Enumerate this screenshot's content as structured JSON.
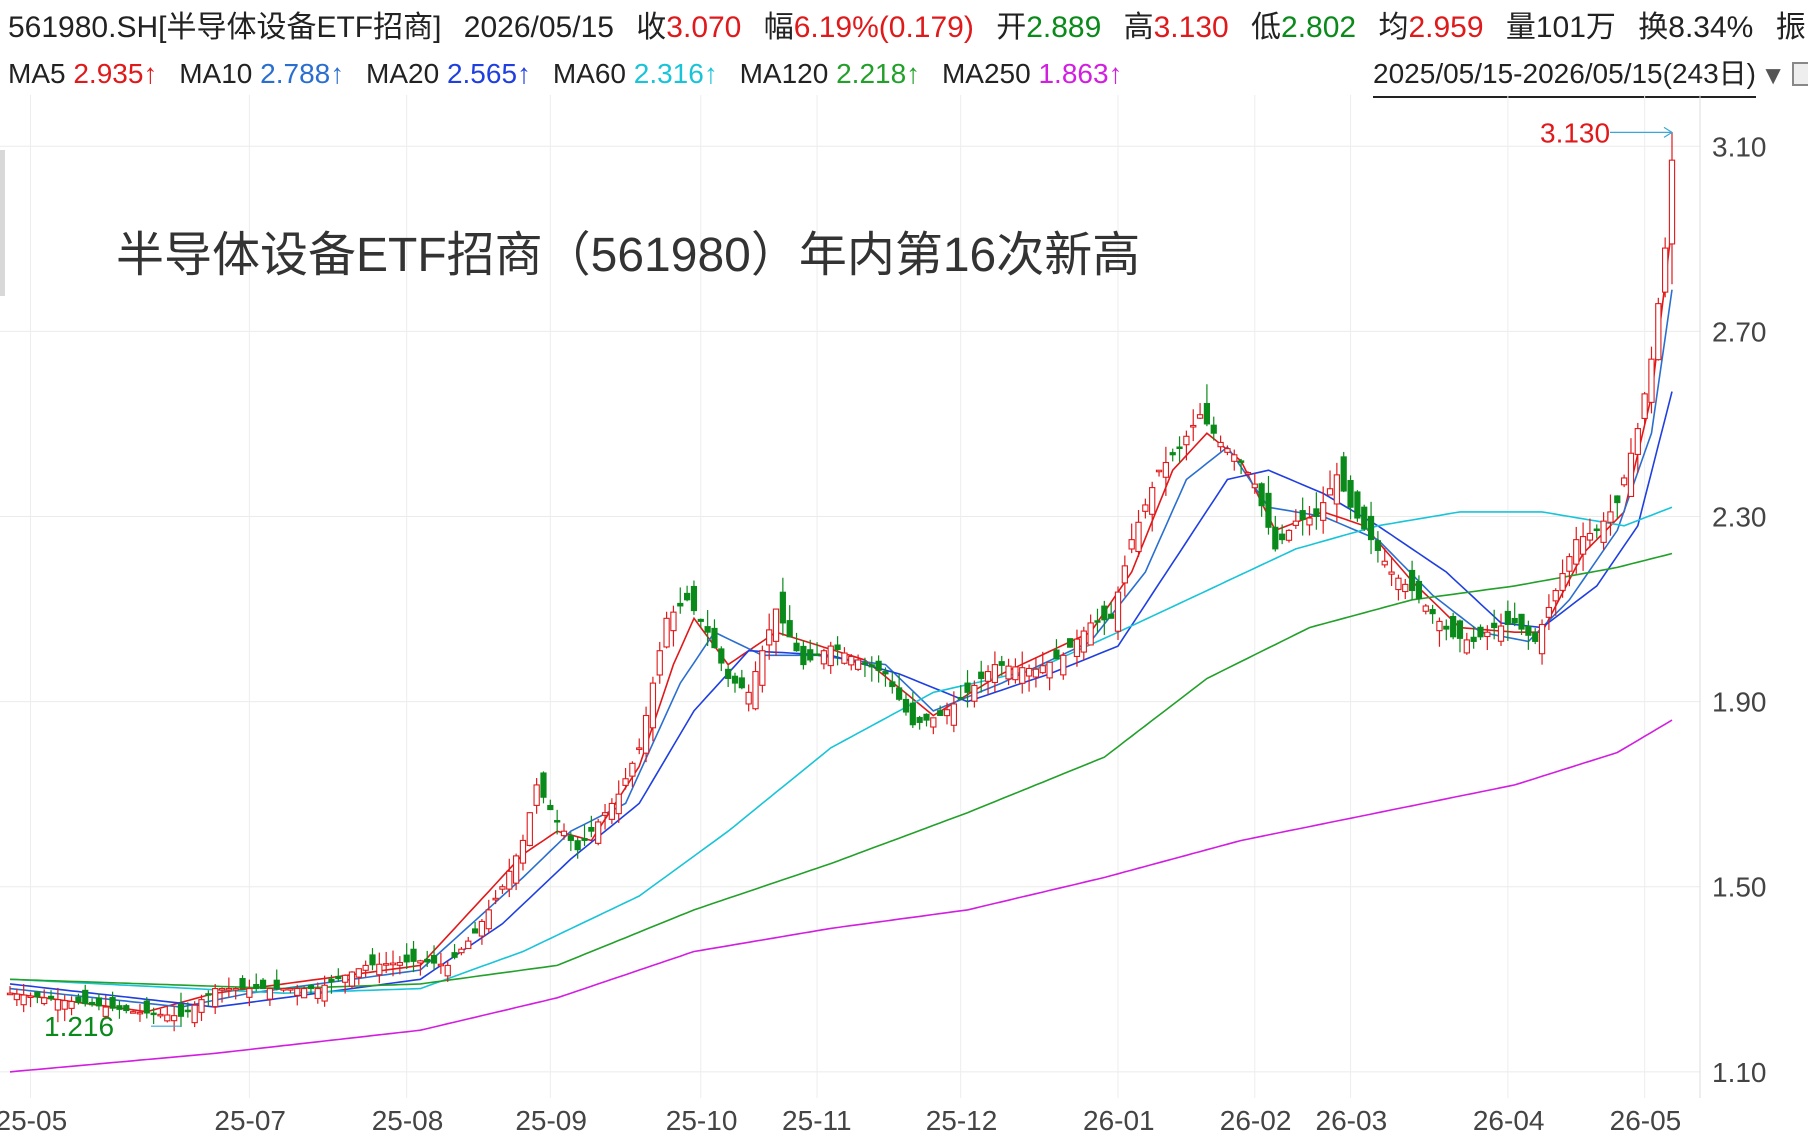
{
  "header": {
    "code_name": "561980.SH[半导体设备ETF招商]",
    "date": "2026/05/15",
    "close_label": "收",
    "close_value": "3.070",
    "change_label": "幅",
    "change_value": "6.19%(0.179)",
    "open_label": "开",
    "open_value": "2.889",
    "high_label": "高",
    "high_value": "3.130",
    "low_label": "低",
    "low_value": "2.802",
    "avg_label": "均",
    "avg_value": "2.959",
    "vol_label": "量",
    "vol_value": "101万",
    "turnover_label": "换",
    "turnover_value": "8.34%",
    "amp_label": "振"
  },
  "ma_line": [
    {
      "label": "MA5",
      "value": "2.935↑",
      "color": "#e0191b"
    },
    {
      "label": "MA10",
      "value": "2.788↑",
      "color": "#2a6fcf"
    },
    {
      "label": "MA20",
      "value": "2.565↑",
      "color": "#1f3fe0"
    },
    {
      "label": "MA60",
      "value": "2.316↑",
      "color": "#19c4d8"
    },
    {
      "label": "MA120",
      "value": "2.218↑",
      "color": "#22a02a"
    },
    {
      "label": "MA250",
      "value": "1.863↑",
      "color": "#d21ee0"
    }
  ],
  "range_label": "2025/05/15-2026/05/15(243日)",
  "annotation": "半导体设备ETF招商（561980）年内第16次新高",
  "colors": {
    "up": "#e0191b",
    "down": "#0a8a1a",
    "grid": "#e8e8e8"
  },
  "chart_data": {
    "type": "candlestick",
    "ylim": [
      1.05,
      3.2
    ],
    "y_ticks": [
      {
        "v": 3.1,
        "label": "3.10"
      },
      {
        "v": 2.7,
        "label": "2.70"
      },
      {
        "v": 2.3,
        "label": "2.30"
      },
      {
        "v": 1.9,
        "label": "1.90"
      },
      {
        "v": 1.5,
        "label": "1.50"
      },
      {
        "v": 1.1,
        "label": "1.10"
      }
    ],
    "x_labels": [
      {
        "i": 3,
        "label": "25-05"
      },
      {
        "i": 35,
        "label": "25-07"
      },
      {
        "i": 58,
        "label": "25-08"
      },
      {
        "i": 79,
        "label": "25-09"
      },
      {
        "i": 101,
        "label": "25-10"
      },
      {
        "i": 118,
        "label": "25-11"
      },
      {
        "i": 139,
        "label": "25-12"
      },
      {
        "i": 162,
        "label": "26-01"
      },
      {
        "i": 182,
        "label": "26-02"
      },
      {
        "i": 196,
        "label": "26-03"
      },
      {
        "i": 219,
        "label": "26-04"
      },
      {
        "i": 239,
        "label": "26-05"
      }
    ],
    "high_marker": {
      "value": "3.130"
    },
    "low_marker": {
      "value": "1.216"
    },
    "close_anchors": [
      [
        0,
        1.27
      ],
      [
        10,
        1.25
      ],
      [
        18,
        1.23
      ],
      [
        25,
        1.22
      ],
      [
        30,
        1.28
      ],
      [
        45,
        1.28
      ],
      [
        52,
        1.33
      ],
      [
        60,
        1.34
      ],
      [
        64,
        1.33
      ],
      [
        68,
        1.4
      ],
      [
        72,
        1.5
      ],
      [
        75,
        1.6
      ],
      [
        77,
        1.72
      ],
      [
        80,
        1.64
      ],
      [
        83,
        1.58
      ],
      [
        86,
        1.64
      ],
      [
        89,
        1.7
      ],
      [
        92,
        1.8
      ],
      [
        96,
        2.08
      ],
      [
        99,
        2.12
      ],
      [
        102,
        2.05
      ],
      [
        105,
        1.95
      ],
      [
        108,
        1.92
      ],
      [
        112,
        2.1
      ],
      [
        116,
        1.98
      ],
      [
        120,
        2.02
      ],
      [
        124,
        1.99
      ],
      [
        128,
        1.96
      ],
      [
        132,
        1.85
      ],
      [
        136,
        1.87
      ],
      [
        140,
        1.92
      ],
      [
        144,
        1.98
      ],
      [
        150,
        1.97
      ],
      [
        154,
        2.0
      ],
      [
        158,
        2.07
      ],
      [
        161,
        2.08
      ],
      [
        164,
        2.25
      ],
      [
        168,
        2.4
      ],
      [
        171,
        2.45
      ],
      [
        174,
        2.52
      ],
      [
        177,
        2.46
      ],
      [
        180,
        2.42
      ],
      [
        182,
        2.37
      ],
      [
        185,
        2.23
      ],
      [
        188,
        2.29
      ],
      [
        191,
        2.3
      ],
      [
        194,
        2.39
      ],
      [
        196,
        2.32
      ],
      [
        199,
        2.25
      ],
      [
        202,
        2.18
      ],
      [
        205,
        2.14
      ],
      [
        208,
        2.09
      ],
      [
        211,
        2.04
      ],
      [
        214,
        2.03
      ],
      [
        217,
        2.06
      ],
      [
        220,
        2.07
      ],
      [
        223,
        2.03
      ],
      [
        226,
        2.14
      ],
      [
        229,
        2.25
      ],
      [
        232,
        2.27
      ],
      [
        235,
        2.33
      ],
      [
        238,
        2.49
      ],
      [
        240,
        2.64
      ],
      [
        242,
        2.88
      ],
      [
        243,
        3.07
      ]
    ],
    "ma_series": [
      {
        "name": "MA5",
        "color": "#e0191b",
        "anchors": [
          [
            0,
            1.27
          ],
          [
            20,
            1.23
          ],
          [
            30,
            1.27
          ],
          [
            60,
            1.33
          ],
          [
            75,
            1.57
          ],
          [
            80,
            1.62
          ],
          [
            85,
            1.6
          ],
          [
            92,
            1.76
          ],
          [
            97,
            1.98
          ],
          [
            100,
            2.08
          ],
          [
            105,
            1.98
          ],
          [
            112,
            2.05
          ],
          [
            125,
            1.99
          ],
          [
            135,
            1.87
          ],
          [
            145,
            1.96
          ],
          [
            158,
            2.05
          ],
          [
            164,
            2.18
          ],
          [
            170,
            2.4
          ],
          [
            175,
            2.48
          ],
          [
            180,
            2.42
          ],
          [
            185,
            2.27
          ],
          [
            192,
            2.31
          ],
          [
            198,
            2.28
          ],
          [
            205,
            2.16
          ],
          [
            212,
            2.06
          ],
          [
            220,
            2.05
          ],
          [
            224,
            2.05
          ],
          [
            230,
            2.22
          ],
          [
            236,
            2.31
          ],
          [
            240,
            2.56
          ],
          [
            243,
            2.93
          ]
        ]
      },
      {
        "name": "MA10",
        "color": "#2a6fcf",
        "anchors": [
          [
            0,
            1.28
          ],
          [
            25,
            1.24
          ],
          [
            35,
            1.27
          ],
          [
            60,
            1.32
          ],
          [
            75,
            1.52
          ],
          [
            82,
            1.62
          ],
          [
            90,
            1.68
          ],
          [
            98,
            1.94
          ],
          [
            103,
            2.05
          ],
          [
            110,
            2.0
          ],
          [
            118,
            2.0
          ],
          [
            128,
            1.98
          ],
          [
            135,
            1.88
          ],
          [
            145,
            1.94
          ],
          [
            158,
            2.03
          ],
          [
            166,
            2.18
          ],
          [
            172,
            2.38
          ],
          [
            178,
            2.45
          ],
          [
            184,
            2.32
          ],
          [
            192,
            2.3
          ],
          [
            200,
            2.25
          ],
          [
            208,
            2.13
          ],
          [
            215,
            2.05
          ],
          [
            222,
            2.03
          ],
          [
            228,
            2.12
          ],
          [
            235,
            2.27
          ],
          [
            240,
            2.48
          ],
          [
            243,
            2.79
          ]
        ]
      },
      {
        "name": "MA20",
        "color": "#1f3fe0",
        "anchors": [
          [
            0,
            1.29
          ],
          [
            30,
            1.24
          ],
          [
            45,
            1.27
          ],
          [
            60,
            1.3
          ],
          [
            72,
            1.42
          ],
          [
            82,
            1.56
          ],
          [
            92,
            1.68
          ],
          [
            100,
            1.88
          ],
          [
            108,
            2.01
          ],
          [
            120,
            2.0
          ],
          [
            130,
            1.96
          ],
          [
            140,
            1.9
          ],
          [
            152,
            1.96
          ],
          [
            162,
            2.02
          ],
          [
            170,
            2.2
          ],
          [
            178,
            2.38
          ],
          [
            184,
            2.4
          ],
          [
            192,
            2.35
          ],
          [
            200,
            2.28
          ],
          [
            210,
            2.18
          ],
          [
            218,
            2.07
          ],
          [
            224,
            2.06
          ],
          [
            232,
            2.15
          ],
          [
            238,
            2.28
          ],
          [
            243,
            2.57
          ]
        ]
      },
      {
        "name": "MA60",
        "color": "#19c4d8",
        "anchors": [
          [
            0,
            1.3
          ],
          [
            40,
            1.27
          ],
          [
            60,
            1.28
          ],
          [
            75,
            1.36
          ],
          [
            92,
            1.48
          ],
          [
            105,
            1.62
          ],
          [
            120,
            1.8
          ],
          [
            135,
            1.92
          ],
          [
            150,
            1.97
          ],
          [
            162,
            2.05
          ],
          [
            175,
            2.14
          ],
          [
            188,
            2.23
          ],
          [
            200,
            2.28
          ],
          [
            212,
            2.31
          ],
          [
            224,
            2.31
          ],
          [
            236,
            2.28
          ],
          [
            243,
            2.32
          ]
        ]
      },
      {
        "name": "MA120",
        "color": "#22a02a",
        "anchors": [
          [
            0,
            1.3
          ],
          [
            20,
            1.29
          ],
          [
            40,
            1.28
          ],
          [
            60,
            1.29
          ],
          [
            80,
            1.33
          ],
          [
            100,
            1.45
          ],
          [
            120,
            1.55
          ],
          [
            140,
            1.66
          ],
          [
            160,
            1.78
          ],
          [
            175,
            1.95
          ],
          [
            190,
            2.06
          ],
          [
            205,
            2.12
          ],
          [
            220,
            2.15
          ],
          [
            235,
            2.19
          ],
          [
            243,
            2.22
          ]
        ]
      },
      {
        "name": "MA250",
        "color": "#d21ee0",
        "anchors": [
          [
            0,
            1.1
          ],
          [
            30,
            1.14
          ],
          [
            60,
            1.19
          ],
          [
            80,
            1.26
          ],
          [
            100,
            1.36
          ],
          [
            120,
            1.41
          ],
          [
            140,
            1.45
          ],
          [
            160,
            1.52
          ],
          [
            180,
            1.6
          ],
          [
            200,
            1.66
          ],
          [
            220,
            1.72
          ],
          [
            235,
            1.79
          ],
          [
            243,
            1.86
          ]
        ]
      }
    ]
  }
}
